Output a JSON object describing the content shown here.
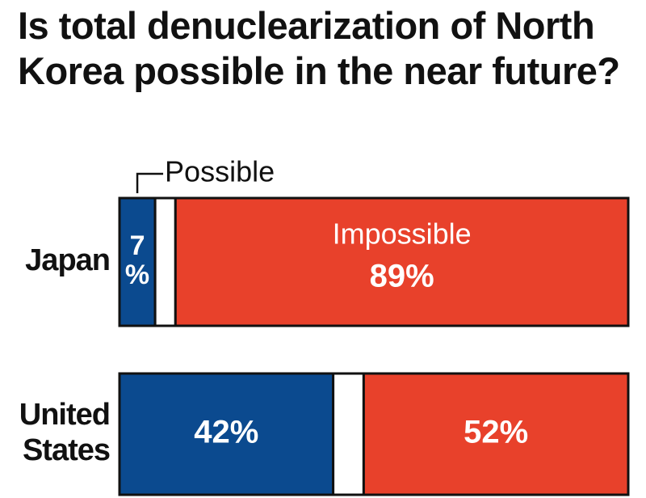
{
  "chart_data": {
    "type": "stacked-bar",
    "title": "Is total denuclearization of North Korea possible in the near future?",
    "categories": [
      "Japan",
      "United States"
    ],
    "series": [
      {
        "name": "Possible",
        "color": "#0b4a8f",
        "values": [
          7,
          42
        ],
        "value_labels": [
          "7%",
          "42%"
        ]
      },
      {
        "color": "#ffffff",
        "values": [
          4,
          6
        ]
      },
      {
        "name": "Impossible",
        "color": "#e8412b",
        "values": [
          89,
          52
        ],
        "value_labels": [
          "89%",
          "52%"
        ]
      }
    ],
    "xlim": [
      0,
      100
    ]
  }
}
